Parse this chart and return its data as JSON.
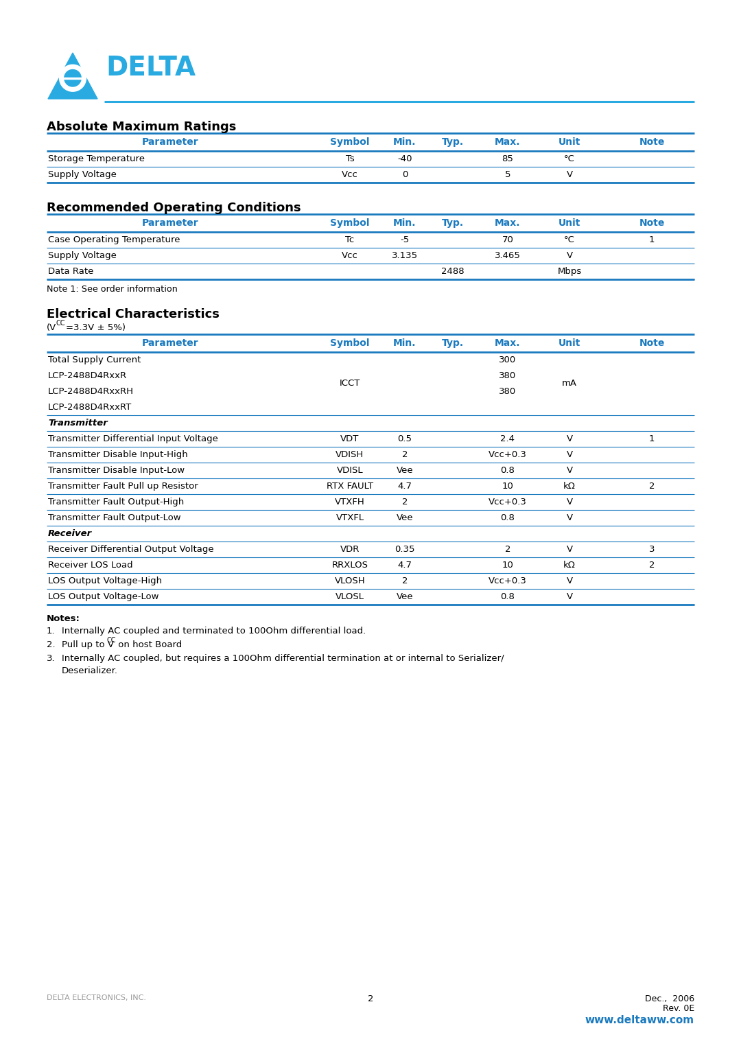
{
  "page_bg": "#ffffff",
  "blue_color": "#1a7abf",
  "logo_blue": "#29abe2",
  "text_color": "#000000",
  "gray_text": "#999999",
  "section1_title": "Absolute Maximum Ratings",
  "section2_title": "Recommended Operating Conditions",
  "section3_title": "Electrical Characteristics",
  "table_headers": [
    "Parameter",
    "Symbol",
    "Min.",
    "Typ.",
    "Max.",
    "Unit",
    "Note"
  ],
  "abs_max_rows": [
    [
      "Storage Temperature",
      "Ts",
      "-40",
      "",
      "85",
      "°C",
      ""
    ],
    [
      "Supply Voltage",
      "Vcc",
      "0",
      "",
      "5",
      "V",
      ""
    ]
  ],
  "rec_op_rows": [
    [
      "Case Operating Temperature",
      "Tc",
      "-5",
      "",
      "70",
      "°C",
      "1"
    ],
    [
      "Supply Voltage",
      "Vcc",
      "3.135",
      "",
      "3.465",
      "V",
      ""
    ],
    [
      "Data Rate",
      "",
      "",
      "2488",
      "",
      "Mbps",
      ""
    ]
  ],
  "rec_op_note": "Note 1: See order information",
  "footer_left": "DELTA ELECTRONICS, INC.",
  "footer_page": "2",
  "footer_url": "www.deltaww.com"
}
